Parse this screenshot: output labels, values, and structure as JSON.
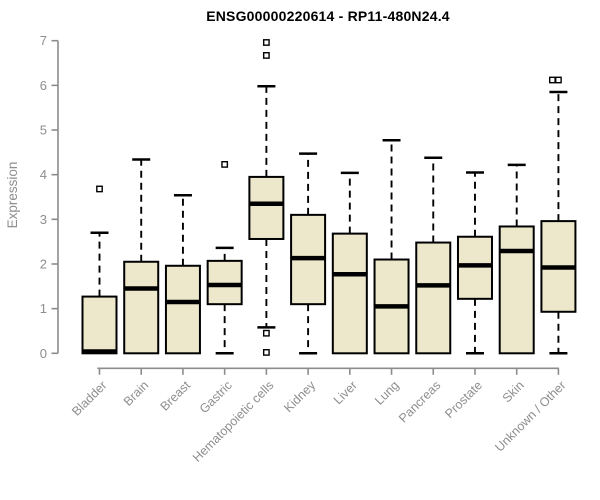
{
  "chart_data": {
    "type": "boxplot",
    "title": "ENSG00000220614 - RP11-480N24.4",
    "ylabel": "Expression",
    "xlabel": "",
    "ylim": [
      0,
      7
    ],
    "yticks": [
      0,
      1,
      2,
      3,
      4,
      5,
      6,
      7
    ],
    "grid": false,
    "legend": "none",
    "categories": [
      "Bladder",
      "Brain",
      "Breast",
      "Gastric",
      "Hematopoietic cells",
      "Kidney",
      "Liver",
      "Lung",
      "Pancreas",
      "Prostate",
      "Skin",
      "Unknown / Other"
    ],
    "series": [
      {
        "name": "Bladder",
        "min": 0,
        "q1": 0,
        "median": 0.04,
        "q3": 1.27,
        "max": 2.7,
        "outliers": [
          3.68
        ]
      },
      {
        "name": "Brain",
        "min": 0,
        "q1": 0,
        "median": 1.45,
        "q3": 2.05,
        "max": 4.34,
        "outliers": []
      },
      {
        "name": "Breast",
        "min": 0,
        "q1": 0,
        "median": 1.15,
        "q3": 1.96,
        "max": 3.54,
        "outliers": []
      },
      {
        "name": "Gastric",
        "min": 0,
        "q1": 1.1,
        "median": 1.53,
        "q3": 2.07,
        "max": 2.36,
        "outliers": [
          4.23
        ]
      },
      {
        "name": "Hematopoietic cells",
        "min": 0.58,
        "q1": 2.56,
        "median": 3.35,
        "q3": 3.95,
        "max": 5.98,
        "outliers": [
          6.96,
          6.67,
          0.45,
          0.02
        ]
      },
      {
        "name": "Kidney",
        "min": 0,
        "q1": 1.1,
        "median": 2.13,
        "q3": 3.1,
        "max": 4.47,
        "outliers": []
      },
      {
        "name": "Liver",
        "min": 0,
        "q1": 0,
        "median": 1.77,
        "q3": 2.68,
        "max": 4.04,
        "outliers": []
      },
      {
        "name": "Lung",
        "min": 0,
        "q1": 0,
        "median": 1.05,
        "q3": 2.1,
        "max": 4.77,
        "outliers": []
      },
      {
        "name": "Pancreas",
        "min": 0,
        "q1": 0,
        "median": 1.52,
        "q3": 2.48,
        "max": 4.38,
        "outliers": []
      },
      {
        "name": "Prostate",
        "min": 0,
        "q1": 1.22,
        "median": 1.97,
        "q3": 2.61,
        "max": 4.05,
        "outliers": []
      },
      {
        "name": "Skin",
        "min": 0,
        "q1": 0,
        "median": 2.29,
        "q3": 2.84,
        "max": 4.22,
        "outliers": []
      },
      {
        "name": "Unknown / Other",
        "min": 0,
        "q1": 0.93,
        "median": 1.92,
        "q3": 2.96,
        "max": 5.85,
        "outliers": [
          6.12,
          6.12
        ]
      }
    ],
    "colors": {
      "box_fill": "#EDE8CC",
      "box_stroke": "#000000",
      "median": "#000000",
      "whisker": "#000000",
      "outlier_fill": "#FFFFFF",
      "axis": "#8C8C8C",
      "tick_label": "#8E8E8E",
      "title": "#000000",
      "background": "#FFFFFF"
    }
  }
}
